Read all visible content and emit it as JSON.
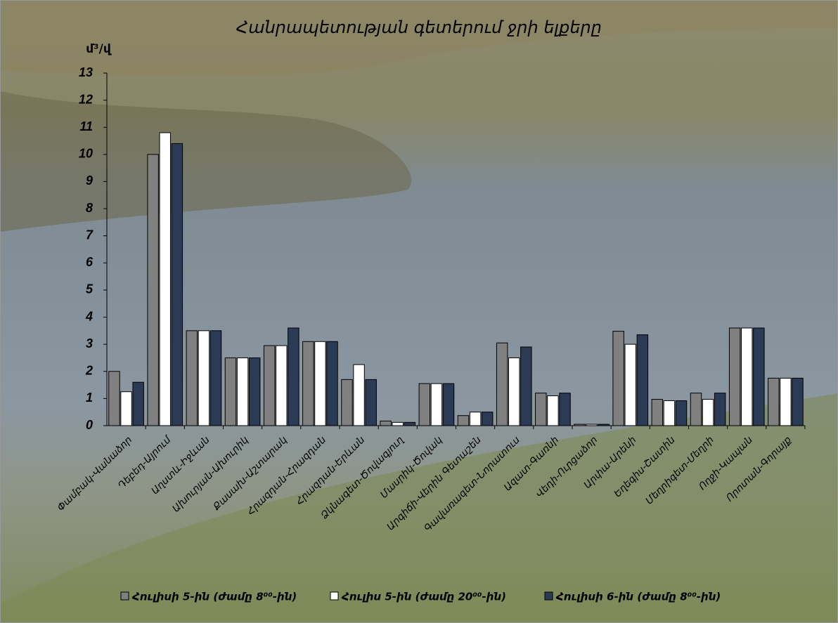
{
  "chart_data": {
    "type": "bar",
    "title": "Հանրապետության գետերում ջրի ելքերը",
    "y_label": "մ³/վ",
    "categories": [
      "Փամբակ-Վանաձոր",
      "Դեբեդ-Այրում",
      "Աղստև-Իջևան",
      "Ախուրյան-Ախուրիկ",
      "Քասախ-Աշտարակ",
      "Հրազդան-Հրազդան",
      "Հրազդան-Երևան",
      "Ձկնագետ-Ծովագյուղ",
      "Մասրիկ-Ծովակ",
      "Արգիճի-Վերին Գետաշեն",
      "Գավառագետ-Նորատուս",
      "Ազատ-Գառնի",
      "Վեդի-Ուրցաձոր",
      "Արփա-Արենի",
      "Եղեգիս-Շատին",
      "Մեղրիգետ-Մեղրի",
      "Ողջի-Կապան",
      "Որոտան-Գորայք"
    ],
    "series": [
      {
        "name": "Հուլիսի 5-ին (ժամը 8⁰⁰-ին)",
        "color": "#808080",
        "values": [
          2.0,
          10.0,
          3.5,
          2.5,
          2.95,
          3.1,
          1.7,
          0.17,
          1.55,
          0.37,
          3.05,
          1.2,
          0.05,
          3.48,
          0.97,
          1.2,
          3.6,
          1.75
        ]
      },
      {
        "name": "Հուլիս 5-ին (ժամը 20⁰⁰-ին)",
        "color": "#ffffff",
        "values": [
          1.25,
          10.8,
          3.5,
          2.5,
          2.95,
          3.1,
          2.25,
          0.12,
          1.55,
          0.5,
          2.5,
          1.1,
          0.05,
          3.0,
          0.92,
          0.97,
          3.6,
          1.75
        ]
      },
      {
        "name": "Հուլիսի 6-ին (ժամը 8⁰⁰-ին)",
        "color": "#2b3a55",
        "values": [
          1.6,
          10.4,
          3.5,
          2.5,
          3.6,
          3.1,
          1.7,
          0.12,
          1.55,
          0.5,
          2.9,
          1.2,
          0.05,
          3.35,
          0.92,
          1.2,
          3.6,
          1.75
        ]
      }
    ],
    "ylim": [
      0,
      13
    ],
    "yticks": [
      0,
      1,
      2,
      3,
      4,
      5,
      6,
      7,
      8,
      9,
      10,
      11,
      12,
      13
    ],
    "legend": "bottom"
  }
}
